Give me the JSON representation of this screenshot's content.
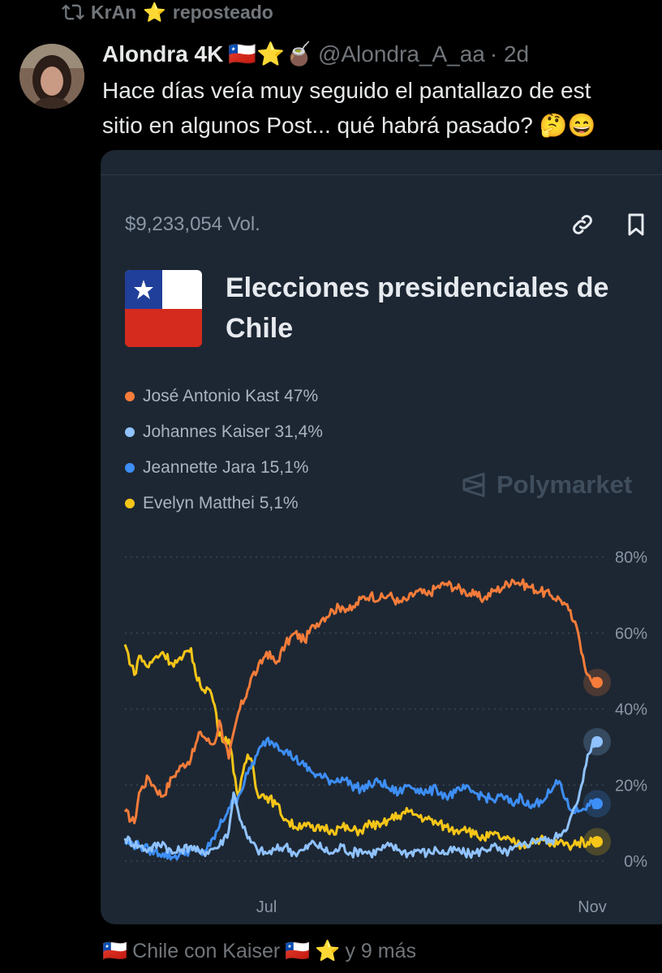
{
  "repost": {
    "user": "KrAn",
    "user_emoji": "⭐",
    "label": "reposteado"
  },
  "tweet": {
    "display_name": "Alondra 4K",
    "name_emojis": "🇨🇱⭐🧉",
    "handle": "@Alondra_A_aa",
    "time": "· 2d",
    "text_line1": "Hace días veía muy seguido el pantallazo de est",
    "text_line2": "sitio en algunos Post... qué habrá pasado? 🤔😄"
  },
  "card": {
    "volume": "$9,233,054 Vol.",
    "title": "Elecciones presidenciales de Chile",
    "watermark": "Polymarket"
  },
  "colors": {
    "kast": "#f57c3a",
    "kaiser": "#8fc2ff",
    "jara": "#3d8ef5",
    "matthei": "#f5c518",
    "card_bg": "#1d2733"
  },
  "chart_data": {
    "type": "line",
    "x_ticks": [
      "Jul",
      "Nov"
    ],
    "y_ticks": [
      "80%",
      "60%",
      "40%",
      "20%",
      "0%"
    ],
    "ylim": [
      0,
      80
    ],
    "legend": [
      {
        "name": "José Antonio Kast",
        "value": "47%"
      },
      {
        "name": "Johannes Kaiser",
        "value": "31,4%"
      },
      {
        "name": "Jeannette Jara",
        "value": "15,1%"
      },
      {
        "name": "Evelyn Matthei",
        "value": "5,1%"
      }
    ],
    "series": [
      {
        "name": "José Antonio Kast",
        "color": "#f57c3a",
        "x": [
          0,
          2,
          3,
          5,
          6,
          8,
          10,
          12,
          14,
          16,
          18,
          19,
          20,
          22,
          24,
          26,
          27,
          28,
          30,
          32,
          34,
          36,
          38,
          40,
          42,
          44,
          46,
          48,
          50,
          52,
          54,
          56,
          58,
          60,
          62,
          64,
          66,
          68,
          70,
          72,
          74,
          76,
          78,
          80,
          82,
          84,
          86,
          88,
          90,
          92,
          93,
          94,
          95,
          96,
          97,
          98,
          99,
          100
        ],
        "values": [
          13,
          10,
          18,
          22,
          20,
          17,
          22,
          25,
          27,
          34,
          31,
          31,
          37,
          27,
          39,
          45,
          49,
          50,
          55,
          52,
          57,
          60,
          58,
          62,
          64,
          66,
          67,
          66,
          69,
          70,
          69,
          70,
          68,
          69,
          71,
          70,
          72,
          73,
          72,
          71,
          70,
          69,
          71,
          72,
          74,
          73,
          72,
          71,
          70,
          69,
          68,
          66,
          63,
          60,
          54,
          49,
          47,
          47
        ]
      },
      {
        "name": "Johannes Kaiser",
        "color": "#8fc2ff",
        "x": [
          0,
          3,
          5,
          8,
          10,
          12,
          14,
          16,
          18,
          20,
          22,
          23,
          24,
          26,
          28,
          30,
          32,
          34,
          36,
          38,
          40,
          42,
          44,
          46,
          48,
          50,
          52,
          54,
          56,
          58,
          60,
          62,
          64,
          66,
          68,
          70,
          72,
          74,
          76,
          78,
          80,
          82,
          84,
          86,
          88,
          90,
          92,
          94,
          96,
          97,
          98,
          99,
          100
        ],
        "values": [
          6,
          4,
          3,
          5,
          2,
          3,
          4,
          2,
          3,
          4,
          8,
          18,
          13,
          6,
          3,
          2,
          3,
          4,
          2,
          3,
          5,
          3,
          2,
          4,
          2,
          3,
          2,
          3,
          4,
          3,
          2,
          3,
          2,
          3,
          2,
          3,
          2,
          2,
          3,
          4,
          2,
          3,
          4,
          5,
          6,
          5,
          7,
          10,
          16,
          21,
          28,
          31,
          31.4
        ]
      },
      {
        "name": "Jeannette Jara",
        "color": "#3d8ef5",
        "x": [
          0,
          3,
          5,
          8,
          10,
          12,
          14,
          16,
          18,
          20,
          22,
          24,
          26,
          28,
          30,
          32,
          34,
          36,
          38,
          40,
          42,
          44,
          46,
          48,
          50,
          52,
          54,
          56,
          58,
          60,
          62,
          64,
          66,
          68,
          70,
          72,
          74,
          76,
          78,
          80,
          82,
          84,
          86,
          88,
          90,
          92,
          94,
          96,
          98,
          100
        ],
        "values": [
          5,
          4,
          3,
          2,
          1,
          2,
          3,
          2,
          4,
          9,
          14,
          17,
          23,
          28,
          32,
          31,
          29,
          27,
          25,
          23,
          22,
          21,
          22,
          20,
          19,
          20,
          21,
          19,
          18,
          20,
          19,
          18,
          19,
          17,
          18,
          19,
          18,
          17,
          16,
          17,
          15,
          17,
          14,
          16,
          18,
          21,
          14,
          13,
          15,
          15.1
        ]
      },
      {
        "name": "Evelyn Matthei",
        "color": "#f5c518",
        "x": [
          0,
          2,
          3,
          5,
          6,
          8,
          10,
          12,
          14,
          15,
          16,
          18,
          19,
          20,
          22,
          24,
          26,
          27,
          28,
          30,
          32,
          34,
          36,
          38,
          40,
          42,
          44,
          46,
          48,
          50,
          52,
          54,
          56,
          58,
          60,
          62,
          64,
          66,
          68,
          70,
          72,
          74,
          76,
          78,
          80,
          82,
          84,
          86,
          88,
          90,
          92,
          94,
          96,
          98,
          100
        ],
        "values": [
          57,
          49,
          54,
          51,
          53,
          55,
          52,
          53,
          56,
          49,
          46,
          45,
          41,
          33,
          32,
          17,
          28,
          26,
          18,
          17,
          15,
          11,
          9,
          10,
          8,
          9,
          8,
          9,
          8,
          8,
          10,
          9,
          11,
          12,
          13,
          12,
          11,
          10,
          9,
          8,
          9,
          7,
          6,
          7,
          6,
          5,
          4,
          5,
          6,
          4,
          5,
          4,
          5,
          5,
          5.1
        ]
      }
    ]
  },
  "footer": {
    "flag_left": "🇨🇱",
    "community": "Chile con Kaiser",
    "flag_right": "🇨🇱",
    "star": "⭐",
    "more": "y 9 más"
  }
}
